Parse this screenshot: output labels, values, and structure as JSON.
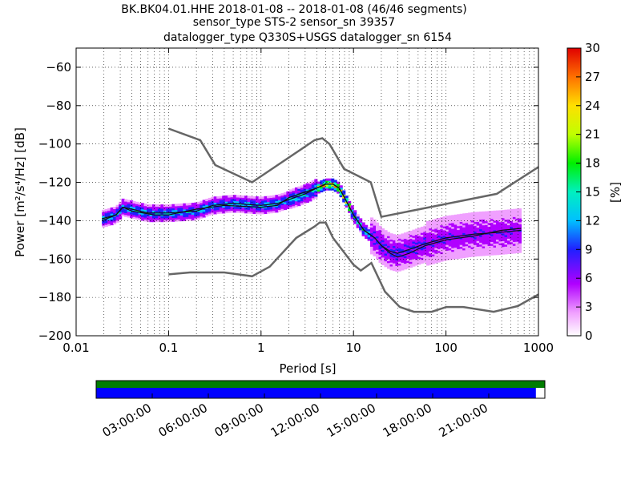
{
  "chart_data": {
    "type": "heatmap",
    "title_lines": [
      "BK.BK04.01.HHE   2018-01-08 -- 2018-01-08  (46/46 segments)",
      "sensor_type STS-2 sensor_sn 39357",
      "datalogger_type Q330S+USGS datalogger_sn 6154"
    ],
    "xlabel": "Period [s]",
    "ylabel": "Power [m²/s⁴/Hz] [dB]",
    "x_scale": "log",
    "xlim": [
      0.01,
      1000
    ],
    "ylim": [
      -200,
      -50
    ],
    "x_ticks": [
      {
        "v": 0.01,
        "label": "0.01"
      },
      {
        "v": 0.1,
        "label": "0.1"
      },
      {
        "v": 1,
        "label": "1"
      },
      {
        "v": 10,
        "label": "10"
      },
      {
        "v": 100,
        "label": "100"
      },
      {
        "v": 1000,
        "label": "1000"
      }
    ],
    "y_ticks": [
      {
        "v": -60,
        "label": "−60"
      },
      {
        "v": -80,
        "label": "−80"
      },
      {
        "v": -100,
        "label": "−100"
      },
      {
        "v": -120,
        "label": "−120"
      },
      {
        "v": -140,
        "label": "−140"
      },
      {
        "v": -160,
        "label": "−160"
      },
      {
        "v": -180,
        "label": "−180"
      },
      {
        "v": -200,
        "label": "−200"
      }
    ],
    "grid": true,
    "colorbar": {
      "label": "[%]",
      "range": [
        0,
        30
      ],
      "ticks": [
        {
          "v": 0,
          "label": "0"
        },
        {
          "v": 3,
          "label": "3"
        },
        {
          "v": 6,
          "label": "6"
        },
        {
          "v": 9,
          "label": "9"
        },
        {
          "v": 12,
          "label": "12"
        },
        {
          "v": 15,
          "label": "15"
        },
        {
          "v": 18,
          "label": "18"
        },
        {
          "v": 21,
          "label": "21"
        },
        {
          "v": 24,
          "label": "24"
        },
        {
          "v": 27,
          "label": "27"
        },
        {
          "v": 30,
          "label": "30"
        }
      ]
    },
    "noise_model_high": [
      [
        0.1,
        -92
      ],
      [
        0.22,
        -98
      ],
      [
        0.32,
        -111
      ],
      [
        0.8,
        -120
      ],
      [
        3.8,
        -98
      ],
      [
        4.6,
        -97
      ],
      [
        5.5,
        -100
      ],
      [
        7.9,
        -113
      ],
      [
        15.4,
        -120
      ],
      [
        20,
        -138
      ],
      [
        354,
        -126
      ],
      [
        1000,
        -112
      ]
    ],
    "noise_model_low": [
      [
        0.1,
        -168
      ],
      [
        0.17,
        -167
      ],
      [
        0.4,
        -167
      ],
      [
        0.8,
        -169
      ],
      [
        1.24,
        -164
      ],
      [
        2.4,
        -149
      ],
      [
        3.8,
        -143
      ],
      [
        4.3,
        -141
      ],
      [
        5,
        -141
      ],
      [
        6,
        -149
      ],
      [
        10,
        -163
      ],
      [
        12,
        -166
      ],
      [
        15.6,
        -162
      ],
      [
        21.9,
        -177
      ],
      [
        31.6,
        -185
      ],
      [
        45,
        -187.5
      ],
      [
        70,
        -187.5
      ],
      [
        101,
        -185
      ],
      [
        154,
        -185
      ],
      [
        328,
        -187.5
      ],
      [
        600,
        -184.5
      ],
      [
        1000,
        -178.5
      ]
    ],
    "mean_curve": [
      [
        0.019,
        -139
      ],
      [
        0.027,
        -137
      ],
      [
        0.032,
        -133
      ],
      [
        0.04,
        -134
      ],
      [
        0.06,
        -136
      ],
      [
        0.1,
        -136
      ],
      [
        0.2,
        -135
      ],
      [
        0.3,
        -132
      ],
      [
        0.5,
        -131
      ],
      [
        1,
        -132
      ],
      [
        1.5,
        -131
      ],
      [
        2,
        -129
      ],
      [
        3,
        -126
      ],
      [
        4,
        -123
      ],
      [
        5,
        -121
      ],
      [
        6,
        -121
      ],
      [
        7,
        -123
      ],
      [
        8,
        -128
      ],
      [
        10,
        -137
      ],
      [
        13,
        -145
      ],
      [
        17,
        -149
      ],
      [
        20,
        -153
      ],
      [
        25,
        -156
      ],
      [
        30,
        -157
      ],
      [
        40,
        -155
      ],
      [
        60,
        -152
      ],
      [
        100,
        -149
      ],
      [
        200,
        -147
      ],
      [
        400,
        -146
      ],
      [
        650,
        -145
      ]
    ],
    "mode_curve": [
      [
        0.019,
        -140
      ],
      [
        0.027,
        -137
      ],
      [
        0.032,
        -133
      ],
      [
        0.04,
        -135
      ],
      [
        0.07,
        -137
      ],
      [
        0.1,
        -137
      ],
      [
        0.2,
        -134
      ],
      [
        0.4,
        -132
      ],
      [
        1,
        -133
      ],
      [
        1.5,
        -132
      ],
      [
        2,
        -128
      ],
      [
        3,
        -125
      ],
      [
        4,
        -123
      ],
      [
        5,
        -121
      ],
      [
        6,
        -121
      ],
      [
        7,
        -123
      ],
      [
        8,
        -128
      ],
      [
        10,
        -137
      ],
      [
        13,
        -145
      ],
      [
        17,
        -149
      ],
      [
        20,
        -153
      ],
      [
        25,
        -157
      ],
      [
        30,
        -159
      ],
      [
        40,
        -157
      ],
      [
        60,
        -153
      ],
      [
        100,
        -150
      ],
      [
        200,
        -148
      ],
      [
        400,
        -145
      ],
      [
        650,
        -144
      ]
    ],
    "time_axis": {
      "tick_labels": [
        "03:00:00",
        "06:00:00",
        "09:00:00",
        "12:00:00",
        "15:00:00",
        "18:00:00",
        "21:00:00"
      ],
      "coverage_fraction": 0.98
    }
  }
}
